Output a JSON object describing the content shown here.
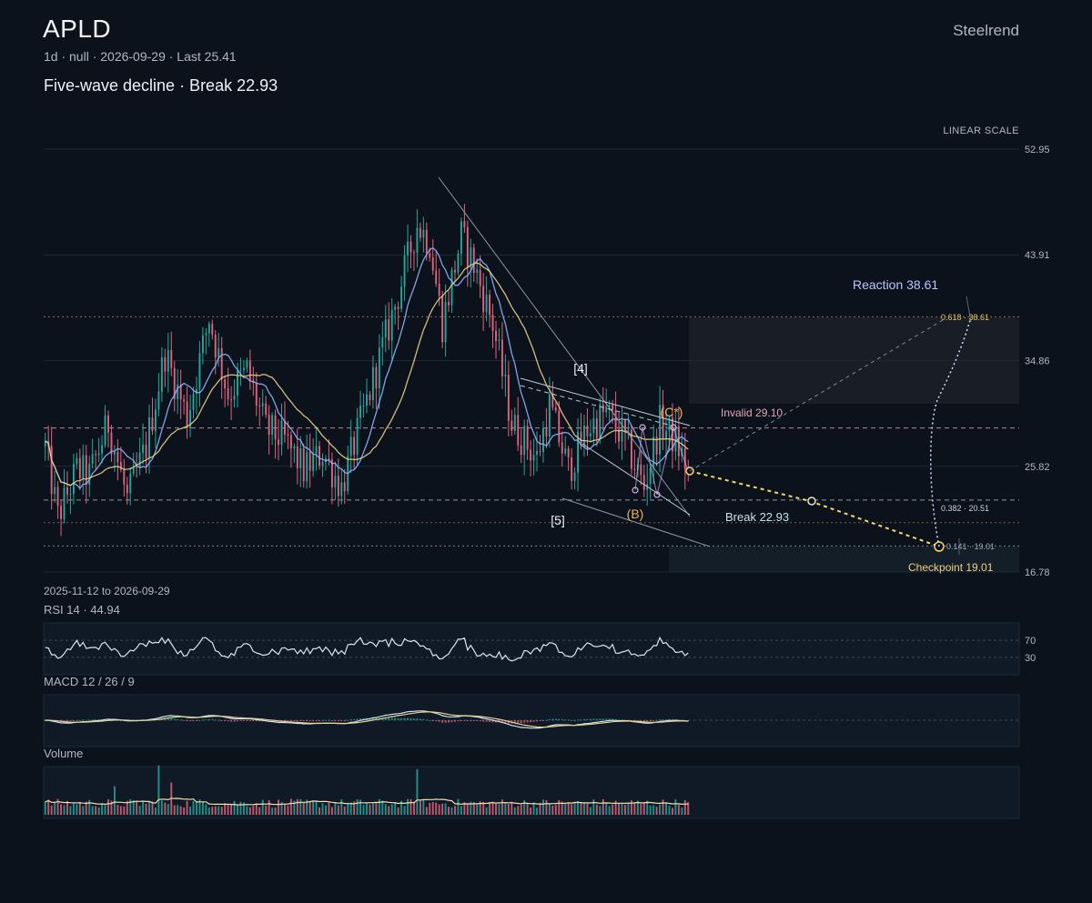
{
  "header": {
    "ticker": "APLD",
    "meta": "1d · null · 2026-09-29 · Last 25.41",
    "headline": "Five-wave decline · Break 22.93",
    "brand": "Steelrend",
    "scale_label": "LINEAR SCALE",
    "date_range": "2025-11-12 to 2026-09-29"
  },
  "colors": {
    "background": "#0b121c",
    "up": "#26a69a",
    "down": "#e0637d",
    "ma_fast": "#8fb3ff",
    "ma_slow": "#e8d08a",
    "accent_yellow": "#f5d76e",
    "grid": "#1d2a36"
  },
  "chart_data": {
    "type": "candlestick",
    "y_ticks": [
      52.95,
      43.91,
      34.86,
      25.82,
      16.78
    ],
    "ylim": [
      16.78,
      52.95
    ],
    "last": 25.41,
    "start_date": "2025-11-12",
    "end_date": "2026-09-29",
    "price_path": [
      [
        0,
        27.5
      ],
      [
        4,
        21.5
      ],
      [
        10,
        25.5
      ],
      [
        14,
        25.0
      ],
      [
        20,
        29.5
      ],
      [
        26,
        23.0
      ],
      [
        32,
        27.5
      ],
      [
        38,
        35.5
      ],
      [
        45,
        30.0
      ],
      [
        52,
        38.5
      ],
      [
        58,
        32.0
      ],
      [
        64,
        34.0
      ],
      [
        70,
        29.0
      ],
      [
        76,
        28.0
      ],
      [
        82,
        25.5
      ],
      [
        88,
        27.0
      ],
      [
        94,
        24.0
      ],
      [
        100,
        29.5
      ],
      [
        106,
        35.0
      ],
      [
        112,
        40.5
      ],
      [
        118,
        46.5
      ],
      [
        122,
        45.0
      ],
      [
        126,
        38.0
      ],
      [
        132,
        45.5
      ],
      [
        136,
        43.0
      ],
      [
        142,
        38.0
      ],
      [
        148,
        29.5
      ],
      [
        156,
        26.5
      ],
      [
        160,
        31.0
      ],
      [
        166,
        25.5
      ],
      [
        172,
        29.0
      ],
      [
        178,
        30.5
      ],
      [
        184,
        28.0
      ],
      [
        190,
        24.0
      ],
      [
        195,
        29.5
      ],
      [
        200,
        28.0
      ],
      [
        204,
        25.4
      ]
    ],
    "volume_spikes": [
      [
        36,
        2.6
      ],
      [
        118,
        2.4
      ],
      [
        40,
        1.7
      ],
      [
        22,
        1.5
      ]
    ],
    "annotations": {
      "wave_labels": [
        "[4]",
        "[5]",
        "(B)",
        "(C*)"
      ],
      "invalid_label": "Invalid 29.10",
      "break_label": "Break 22.93",
      "reaction_label": "Reaction 38.61",
      "checkpoint_label": "Checkpoint 19.01",
      "fib_0618": "0.618 · 38.61",
      "fib_0382": "0.382 · 20.51",
      "fib_0141": "0.141 · 19.01"
    },
    "levels": {
      "fib_0618": 38.61,
      "invalid": 29.1,
      "break": 22.93,
      "support": 21.0,
      "checkpoint": 19.01
    }
  },
  "indicators": {
    "rsi": {
      "label": "RSI 14 · 44.94",
      "levels": [
        "70",
        "30"
      ]
    },
    "macd": {
      "label": "MACD 12 / 26 / 9"
    },
    "volume": {
      "label": "Volume"
    }
  }
}
